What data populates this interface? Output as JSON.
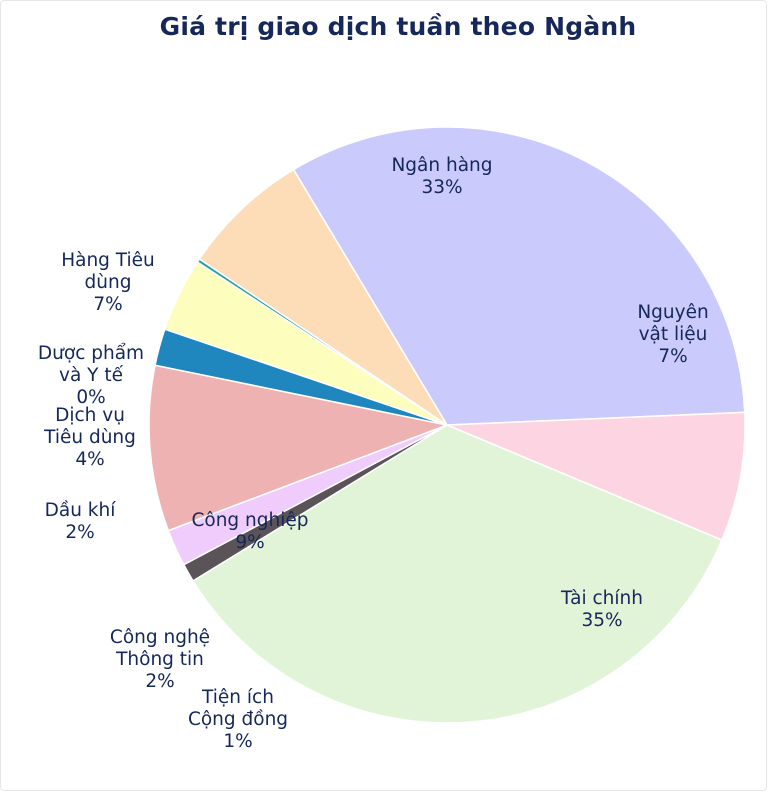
{
  "chart_data": {
    "type": "pie",
    "title": "Giá trị giao dịch tuần theo Ngành",
    "slices": [
      {
        "name": "Ngân hàng",
        "label_lines": [
          "Ngân hàng",
          "33%"
        ],
        "value": 33,
        "color": "#cacafc"
      },
      {
        "name": "Nguyên vật liệu",
        "label_lines": [
          "Nguyên",
          "vật liệu",
          "7%"
        ],
        "value": 7,
        "color": "#fdd5e2"
      },
      {
        "name": "Tài chính",
        "label_lines": [
          "Tài chính",
          "35%"
        ],
        "value": 35,
        "color": "#e1f4d7"
      },
      {
        "name": "Tiện ích Cộng đồng",
        "label_lines": [
          "Tiện ích",
          "Cộng đồng",
          "1%"
        ],
        "value": 1,
        "color": "#5a5458"
      },
      {
        "name": "Công nghệ Thông tin",
        "label_lines": [
          "Công nghệ",
          "Thông tin",
          "2%"
        ],
        "value": 2,
        "color": "#efccfb"
      },
      {
        "name": "Công nghiệp",
        "label_lines": [
          "Công nghiệp",
          "9%"
        ],
        "value": 9,
        "color": "#efb2b2"
      },
      {
        "name": "Dầu khí",
        "label_lines": [
          "Dầu khí",
          "2%"
        ],
        "value": 2,
        "color": "#1f87bd"
      },
      {
        "name": "Dịch vụ Tiêu dùng",
        "label_lines": [
          "Dịch vụ",
          "Tiêu dùng",
          "4%"
        ],
        "value": 4,
        "color": "#fdfdbd"
      },
      {
        "name": "Dược phẩm và Y tế",
        "label_lines": [
          "Dược phẩm",
          "và Y tế",
          "0%"
        ],
        "value": 0.2,
        "color": "#2aa0a3"
      },
      {
        "name": "Hàng Tiêu dùng",
        "label_lines": [
          "Hàng Tiêu",
          "dùng",
          "7%"
        ],
        "value": 7,
        "color": "#fddcb8"
      }
    ]
  }
}
